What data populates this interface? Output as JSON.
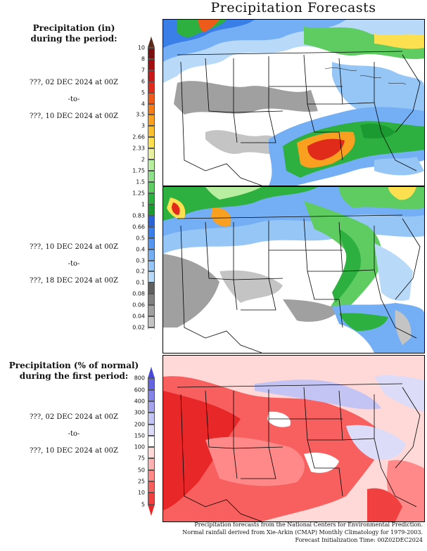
{
  "title": "Precipitation Forecasts",
  "left_panel_top": {
    "heading_line1": "Precipitation (in)",
    "heading_line2": "during the period:"
  },
  "period1": {
    "start": "???, 02 DEC 2024 at 00Z",
    "sep": "-to-",
    "end": "???, 10 DEC 2024 at 00Z"
  },
  "period2": {
    "start": "???, 10 DEC 2024 at 00Z",
    "sep": "-to-",
    "end": "???, 18 DEC 2024 at 00Z"
  },
  "inch_scale": {
    "labels": [
      "10",
      "8",
      "7",
      "6",
      "5",
      "4",
      "3.5",
      "3",
      "2.66",
      "2.33",
      "2",
      "1.75",
      "1.5",
      "1.25",
      "1",
      "0.83",
      "0.66",
      "0.5",
      "0.4",
      "0.3",
      "0.2",
      "0.1",
      "0.08",
      "0.06",
      "0.04",
      "0.02"
    ],
    "colors": [
      "#5a2a1a",
      "#7a1010",
      "#a01010",
      "#c81818",
      "#e02a1a",
      "#ee5a1a",
      "#f57a18",
      "#f9a020",
      "#fbc030",
      "#fde050",
      "#e8f0a0",
      "#b8eea0",
      "#8ee08a",
      "#5ecc60",
      "#2eb040",
      "#1a9a30",
      "#2a62d8",
      "#3a7ee8",
      "#5496f0",
      "#74aef4",
      "#96c6f6",
      "#b8daf8",
      "#606060",
      "#808080",
      "#a0a0a0",
      "#c4c4c4",
      "#ffffff"
    ]
  },
  "left_panel_bottom": {
    "heading_line1": "Precipitation (% of normal)",
    "heading_line2": "during the first period:"
  },
  "period3": {
    "start": "???, 02 DEC 2024 at 00Z",
    "sep": "-to-",
    "end": "???, 10 DEC 2024 at 00Z"
  },
  "pct_scale": {
    "labels": [
      "800",
      "600",
      "400",
      "300",
      "200",
      "150",
      "100",
      "75",
      "50",
      "25",
      "10",
      "5"
    ],
    "colors": [
      "#4848d8",
      "#6464e0",
      "#8484e8",
      "#a4a4ee",
      "#c4c4f4",
      "#dcdcf8",
      "#ffffff",
      "#ffd8d8",
      "#ffb0b0",
      "#ff8888",
      "#f86060",
      "#f04040",
      "#e82828"
    ]
  },
  "footer": {
    "line1": "Precipitation forecasts from the National Centers for Environmental Prediction.",
    "line2": "Normal rainfall derived from Xie-Arkin (CMAP) Monthly Climatology for 1979-2003.",
    "line3": "Forecast Initialization Time: 00Z02DEC2024"
  }
}
